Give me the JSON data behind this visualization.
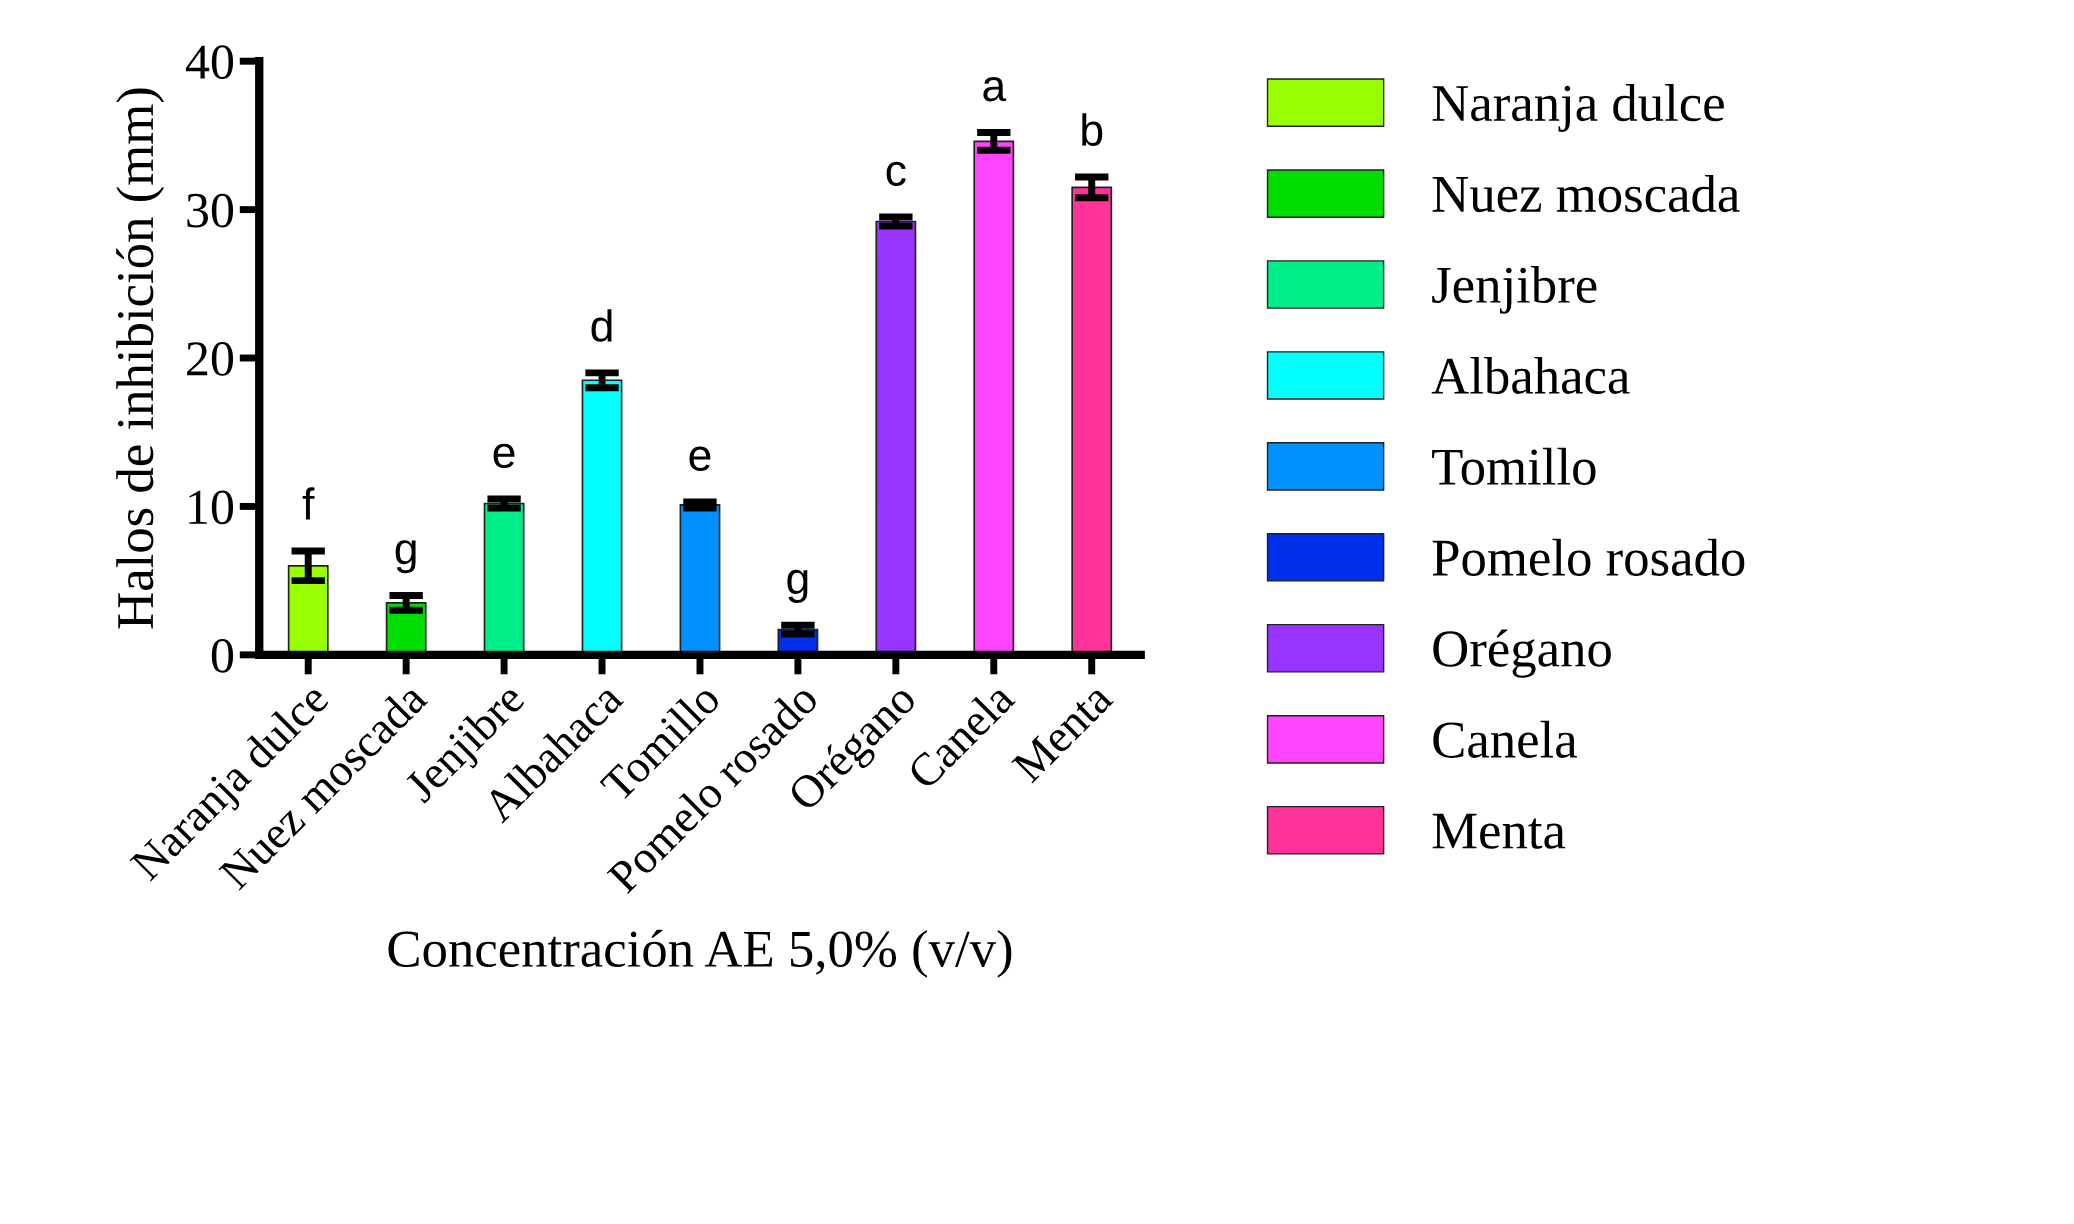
{
  "chart_data": {
    "type": "bar",
    "xlabel": "Concentración AE 5,0% (v/v)",
    "ylabel": "Halos de inhibición (mm)",
    "categories": [
      "Naranja dulce",
      "Nuez moscada",
      "Jenjibre",
      "Albahaca",
      "Tomillo",
      "Pomelo rosado",
      "Orégano",
      "Canela",
      "Menta"
    ],
    "series": [
      {
        "name": "Naranja dulce",
        "color": "#99ff00",
        "values": [
          6.0,
          null,
          null,
          null,
          null,
          null,
          null,
          null,
          null
        ],
        "errors": [
          1.0,
          null,
          null,
          null,
          null,
          null,
          null,
          null,
          null
        ]
      },
      {
        "name": "Nuez moscada",
        "color": "#00dd00",
        "values": [
          null,
          3.5,
          null,
          null,
          null,
          null,
          null,
          null,
          null
        ],
        "errors": [
          null,
          0.5,
          null,
          null,
          null,
          null,
          null,
          null,
          null
        ]
      },
      {
        "name": "Jenjibre",
        "color": "#00ee88",
        "values": [
          null,
          null,
          10.2,
          null,
          null,
          null,
          null,
          null,
          null
        ],
        "errors": [
          null,
          null,
          0.3,
          null,
          null,
          null,
          null,
          null,
          null
        ]
      },
      {
        "name": "Albahaca",
        "color": "#00ffff",
        "values": [
          null,
          null,
          null,
          18.5,
          null,
          null,
          null,
          null,
          null
        ],
        "errors": [
          null,
          null,
          null,
          0.5,
          null,
          null,
          null,
          null,
          null
        ]
      },
      {
        "name": "Tomillo",
        "color": "#0090ff",
        "values": [
          null,
          null,
          null,
          null,
          10.1,
          null,
          null,
          null,
          null
        ],
        "errors": [
          null,
          null,
          null,
          null,
          0.2,
          null,
          null,
          null,
          null
        ]
      },
      {
        "name": "Pomelo rosado",
        "color": "#0030ee",
        "values": [
          null,
          null,
          null,
          null,
          null,
          1.7,
          null,
          null,
          null
        ],
        "errors": [
          null,
          null,
          null,
          null,
          null,
          0.3,
          null,
          null,
          null
        ]
      },
      {
        "name": "Orégano",
        "color": "#9933ff",
        "values": [
          null,
          null,
          null,
          null,
          null,
          null,
          29.2,
          null,
          null
        ],
        "errors": [
          null,
          null,
          null,
          null,
          null,
          null,
          0.3,
          null,
          null
        ]
      },
      {
        "name": "Canela",
        "color": "#ff44ff",
        "values": [
          null,
          null,
          null,
          null,
          null,
          null,
          null,
          34.6,
          null
        ],
        "errors": [
          null,
          null,
          null,
          null,
          null,
          null,
          null,
          0.6,
          null
        ]
      },
      {
        "name": "Menta",
        "color": "#ff3399",
        "values": [
          null,
          null,
          null,
          null,
          null,
          null,
          null,
          null,
          31.5
        ],
        "errors": [
          null,
          null,
          null,
          null,
          null,
          null,
          null,
          null,
          0.7
        ]
      }
    ],
    "annotations": [
      {
        "text": "f",
        "x": "Naranja dulce",
        "y": 7.0
      },
      {
        "text": "g",
        "x": "Nuez moscada",
        "y": 4.0
      },
      {
        "text": "e",
        "x": "Jenjibre",
        "y": 10.5
      },
      {
        "text": "d",
        "x": "Albahaca",
        "y": 19.0
      },
      {
        "text": "e",
        "x": "Tomillo",
        "y": 10.3
      },
      {
        "text": "g",
        "x": "Pomelo rosado",
        "y": 2.0
      },
      {
        "text": "c",
        "x": "Orégano",
        "y": 29.5
      },
      {
        "text": "a",
        "x": "Canela",
        "y": 35.2
      },
      {
        "text": "b",
        "x": "Menta",
        "y": 32.2
      }
    ],
    "ylim": [
      0,
      40
    ],
    "yticks": [
      0,
      10,
      20,
      30,
      40
    ],
    "grid": false,
    "legend": "right"
  }
}
